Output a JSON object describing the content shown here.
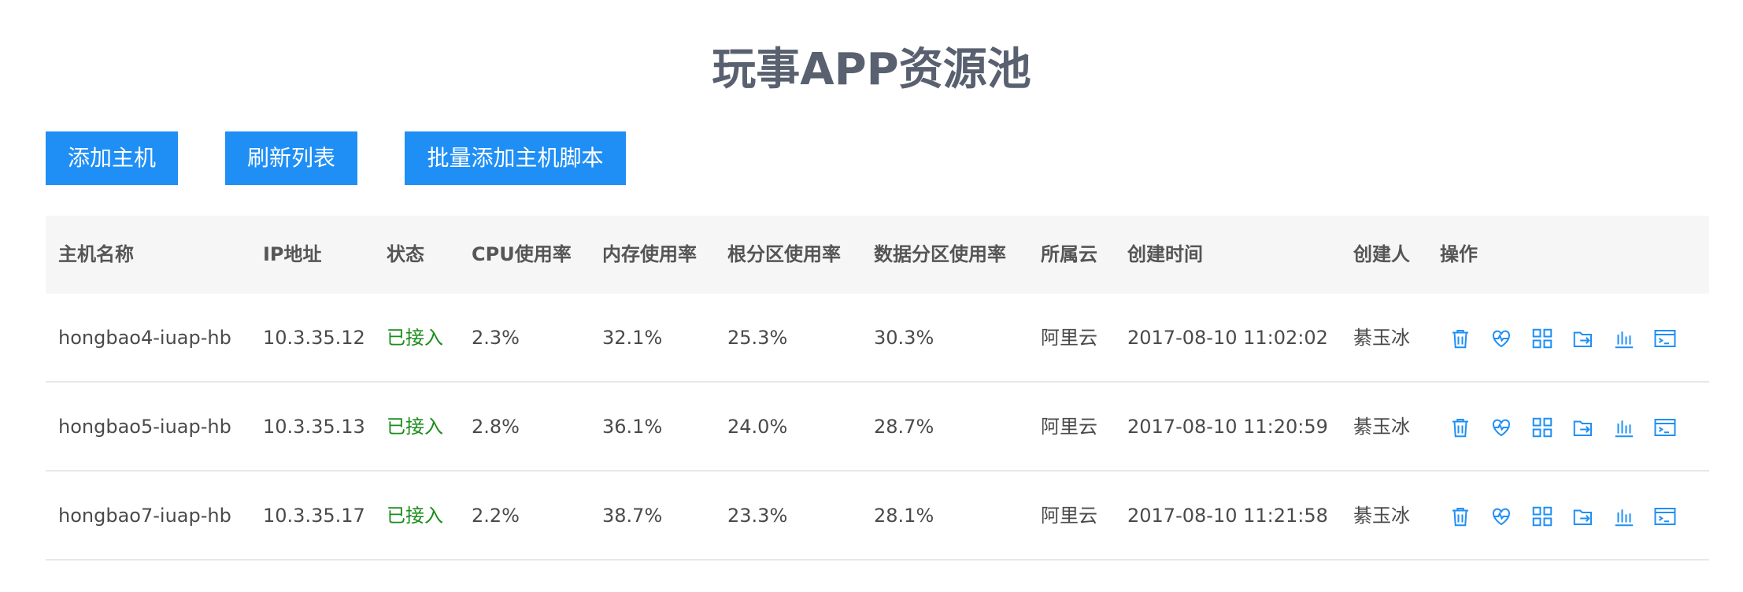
{
  "page": {
    "title": "玩事APP资源池"
  },
  "toolbar": {
    "add_host": "添加主机",
    "refresh_list": "刷新列表",
    "batch_add_script": "批量添加主机脚本"
  },
  "table": {
    "headers": {
      "hostname": "主机名称",
      "ip": "IP地址",
      "status": "状态",
      "cpu": "CPU使用率",
      "memory": "内存使用率",
      "root_partition": "根分区使用率",
      "data_partition": "数据分区使用率",
      "cloud": "所属云",
      "created_at": "创建时间",
      "creator": "创建人",
      "actions": "操作"
    },
    "rows": [
      {
        "hostname": "hongbao4-iuap-hb",
        "ip": "10.3.35.12",
        "status": "已接入",
        "cpu": "2.3%",
        "memory": "32.1%",
        "root_partition": "25.3%",
        "data_partition": "30.3%",
        "cloud": "阿里云",
        "created_at": "2017-08-10 11:02:02",
        "creator": "綦玉冰"
      },
      {
        "hostname": "hongbao5-iuap-hb",
        "ip": "10.3.35.13",
        "status": "已接入",
        "cpu": "2.8%",
        "memory": "36.1%",
        "root_partition": "24.0%",
        "data_partition": "28.7%",
        "cloud": "阿里云",
        "created_at": "2017-08-10 11:20:59",
        "creator": "綦玉冰"
      },
      {
        "hostname": "hongbao7-iuap-hb",
        "ip": "10.3.35.17",
        "status": "已接入",
        "cpu": "2.2%",
        "memory": "38.7%",
        "root_partition": "23.3%",
        "data_partition": "28.1%",
        "cloud": "阿里云",
        "created_at": "2017-08-10 11:21:58",
        "creator": "綦玉冰"
      }
    ],
    "action_icons": [
      "trash-icon",
      "heartbeat-icon",
      "grid-icon",
      "export-icon",
      "bar-chart-icon",
      "terminal-icon"
    ]
  },
  "colors": {
    "primary": "#1f8ff6",
    "status_ok": "#1a8c1a",
    "title": "#596170",
    "header_bg": "#f6f6f6"
  }
}
